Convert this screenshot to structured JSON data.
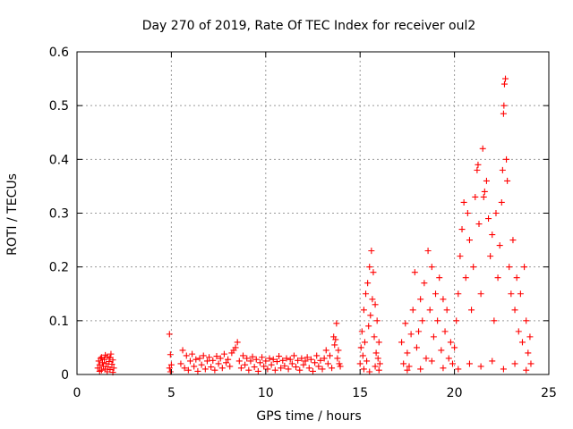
{
  "chart_data": {
    "type": "scatter",
    "title": "Day 270 of 2019, Rate Of TEC Index for receiver oul2",
    "xlabel": "GPS time / hours",
    "ylabel": "ROTI / TECUs",
    "xlim": [
      0,
      25
    ],
    "ylim": [
      0,
      0.6
    ],
    "xticks": [
      0,
      5,
      10,
      15,
      20,
      25
    ],
    "xtick_labels": [
      "0",
      "5",
      "10",
      "15",
      "20",
      "25"
    ],
    "yticks": [
      0,
      0.1,
      0.2,
      0.3,
      0.4,
      0.5,
      0.6
    ],
    "ytick_labels": [
      "0",
      "0.1",
      "0.2",
      "0.3",
      "0.4",
      "0.5",
      "0.6"
    ],
    "grid": true,
    "legend": "none",
    "marker": "plus",
    "color": "#ff0000",
    "series": [
      {
        "values": [
          [
            1.1,
            0.012
          ],
          [
            1.15,
            0.025
          ],
          [
            1.2,
            0.018
          ],
          [
            1.25,
            0.03
          ],
          [
            1.3,
            0.008
          ],
          [
            1.35,
            0.022
          ],
          [
            1.4,
            0.015
          ],
          [
            1.45,
            0.028
          ],
          [
            1.5,
            0.01
          ],
          [
            1.55,
            0.02
          ],
          [
            1.6,
            0.033
          ],
          [
            1.65,
            0.014
          ],
          [
            1.7,
            0.024
          ],
          [
            1.75,
            0.009
          ],
          [
            1.8,
            0.038
          ],
          [
            1.85,
            0.019
          ],
          [
            1.9,
            0.027
          ],
          [
            1.95,
            0.012
          ],
          [
            1.3,
            0.032
          ],
          [
            1.6,
            0.005
          ],
          [
            1.75,
            0.031
          ],
          [
            1.2,
            0.006
          ],
          [
            1.5,
            0.036
          ],
          [
            1.9,
            0.004
          ],
          [
            4.9,
            0.075
          ],
          [
            4.95,
            0.037
          ],
          [
            4.9,
            0.012
          ],
          [
            4.95,
            0.005
          ],
          [
            5.0,
            0.018
          ],
          [
            5.5,
            0.02
          ],
          [
            5.6,
            0.045
          ],
          [
            5.7,
            0.012
          ],
          [
            5.8,
            0.035
          ],
          [
            5.9,
            0.008
          ],
          [
            6.0,
            0.025
          ],
          [
            6.1,
            0.038
          ],
          [
            6.2,
            0.015
          ],
          [
            6.3,
            0.028
          ],
          [
            6.4,
            0.006
          ],
          [
            6.5,
            0.03
          ],
          [
            6.6,
            0.018
          ],
          [
            6.7,
            0.035
          ],
          [
            6.8,
            0.01
          ],
          [
            6.9,
            0.025
          ],
          [
            7.0,
            0.032
          ],
          [
            7.1,
            0.014
          ],
          [
            7.2,
            0.026
          ],
          [
            7.3,
            0.008
          ],
          [
            7.4,
            0.034
          ],
          [
            7.5,
            0.02
          ],
          [
            7.6,
            0.03
          ],
          [
            7.7,
            0.012
          ],
          [
            7.8,
            0.038
          ],
          [
            7.9,
            0.022
          ],
          [
            8.0,
            0.028
          ],
          [
            8.1,
            0.015
          ],
          [
            8.2,
            0.04
          ],
          [
            8.3,
            0.045
          ],
          [
            8.4,
            0.05
          ],
          [
            8.5,
            0.06
          ],
          [
            8.6,
            0.025
          ],
          [
            8.7,
            0.012
          ],
          [
            8.8,
            0.035
          ],
          [
            8.9,
            0.018
          ],
          [
            9.0,
            0.03
          ],
          [
            9.1,
            0.008
          ],
          [
            9.2,
            0.025
          ],
          [
            9.3,
            0.033
          ],
          [
            9.4,
            0.014
          ],
          [
            9.5,
            0.028
          ],
          [
            9.6,
            0.006
          ],
          [
            9.7,
            0.022
          ],
          [
            9.8,
            0.032
          ],
          [
            9.9,
            0.015
          ],
          [
            10.0,
            0.025
          ],
          [
            10.1,
            0.01
          ],
          [
            10.2,
            0.03
          ],
          [
            10.3,
            0.018
          ],
          [
            10.4,
            0.028
          ],
          [
            10.5,
            0.008
          ],
          [
            10.6,
            0.024
          ],
          [
            10.7,
            0.034
          ],
          [
            10.8,
            0.012
          ],
          [
            10.9,
            0.026
          ],
          [
            11.0,
            0.016
          ],
          [
            11.1,
            0.03
          ],
          [
            11.2,
            0.01
          ],
          [
            11.3,
            0.028
          ],
          [
            11.4,
            0.02
          ],
          [
            11.5,
            0.035
          ],
          [
            11.6,
            0.014
          ],
          [
            11.7,
            0.026
          ],
          [
            11.8,
            0.008
          ],
          [
            11.9,
            0.03
          ],
          [
            12.0,
            0.018
          ],
          [
            12.1,
            0.025
          ],
          [
            12.2,
            0.032
          ],
          [
            12.3,
            0.012
          ],
          [
            12.4,
            0.028
          ],
          [
            12.5,
            0.006
          ],
          [
            12.6,
            0.022
          ],
          [
            12.7,
            0.035
          ],
          [
            12.8,
            0.015
          ],
          [
            12.9,
            0.026
          ],
          [
            13.0,
            0.01
          ],
          [
            13.1,
            0.03
          ],
          [
            13.2,
            0.045
          ],
          [
            13.3,
            0.02
          ],
          [
            13.4,
            0.035
          ],
          [
            13.5,
            0.012
          ],
          [
            13.6,
            0.07
          ],
          [
            13.65,
            0.055
          ],
          [
            13.7,
            0.065
          ],
          [
            13.75,
            0.095
          ],
          [
            13.8,
            0.03
          ],
          [
            13.85,
            0.045
          ],
          [
            13.9,
            0.02
          ],
          [
            13.95,
            0.015
          ],
          [
            15.0,
            0.02
          ],
          [
            15.05,
            0.05
          ],
          [
            15.1,
            0.08
          ],
          [
            15.15,
            0.035
          ],
          [
            15.2,
            0.12
          ],
          [
            15.25,
            0.06
          ],
          [
            15.3,
            0.15
          ],
          [
            15.35,
            0.025
          ],
          [
            15.4,
            0.17
          ],
          [
            15.45,
            0.09
          ],
          [
            15.5,
            0.2
          ],
          [
            15.55,
            0.11
          ],
          [
            15.6,
            0.23
          ],
          [
            15.65,
            0.14
          ],
          [
            15.7,
            0.19
          ],
          [
            15.75,
            0.07
          ],
          [
            15.8,
            0.13
          ],
          [
            15.85,
            0.04
          ],
          [
            15.9,
            0.1
          ],
          [
            15.95,
            0.03
          ],
          [
            16.0,
            0.06
          ],
          [
            16.05,
            0.02
          ],
          [
            15.2,
            0.01
          ],
          [
            15.5,
            0.005
          ],
          [
            15.8,
            0.015
          ],
          [
            17.2,
            0.06
          ],
          [
            17.3,
            0.02
          ],
          [
            17.4,
            0.095
          ],
          [
            17.5,
            0.04
          ],
          [
            17.6,
            0.015
          ],
          [
            17.7,
            0.075
          ],
          [
            17.8,
            0.12
          ],
          [
            17.9,
            0.19
          ],
          [
            18.0,
            0.05
          ],
          [
            18.1,
            0.08
          ],
          [
            18.2,
            0.14
          ],
          [
            18.3,
            0.1
          ],
          [
            18.4,
            0.17
          ],
          [
            18.5,
            0.03
          ],
          [
            18.6,
            0.23
          ],
          [
            18.7,
            0.12
          ],
          [
            18.8,
            0.2
          ],
          [
            18.9,
            0.07
          ],
          [
            19.0,
            0.15
          ],
          [
            19.1,
            0.1
          ],
          [
            19.2,
            0.18
          ],
          [
            19.3,
            0.045
          ],
          [
            19.4,
            0.14
          ],
          [
            19.5,
            0.08
          ],
          [
            19.6,
            0.12
          ],
          [
            19.7,
            0.03
          ],
          [
            19.8,
            0.06
          ],
          [
            19.9,
            0.02
          ],
          [
            20.0,
            0.05
          ],
          [
            20.1,
            0.1
          ],
          [
            20.2,
            0.15
          ],
          [
            20.3,
            0.22
          ],
          [
            20.4,
            0.27
          ],
          [
            20.5,
            0.32
          ],
          [
            20.6,
            0.18
          ],
          [
            20.7,
            0.3
          ],
          [
            20.8,
            0.25
          ],
          [
            20.9,
            0.12
          ],
          [
            21.0,
            0.2
          ],
          [
            21.1,
            0.33
          ],
          [
            21.2,
            0.38
          ],
          [
            21.25,
            0.39
          ],
          [
            21.3,
            0.28
          ],
          [
            21.4,
            0.15
          ],
          [
            21.5,
            0.42
          ],
          [
            21.55,
            0.33
          ],
          [
            21.6,
            0.34
          ],
          [
            21.7,
            0.36
          ],
          [
            21.8,
            0.29
          ],
          [
            21.9,
            0.22
          ],
          [
            22.0,
            0.26
          ],
          [
            22.1,
            0.1
          ],
          [
            22.2,
            0.3
          ],
          [
            22.3,
            0.18
          ],
          [
            22.4,
            0.24
          ],
          [
            22.5,
            0.32
          ],
          [
            22.55,
            0.38
          ],
          [
            22.6,
            0.485
          ],
          [
            22.62,
            0.5
          ],
          [
            22.65,
            0.54
          ],
          [
            22.7,
            0.55
          ],
          [
            22.75,
            0.4
          ],
          [
            22.8,
            0.36
          ],
          [
            22.9,
            0.2
          ],
          [
            23.0,
            0.15
          ],
          [
            23.1,
            0.25
          ],
          [
            23.2,
            0.12
          ],
          [
            23.3,
            0.18
          ],
          [
            23.4,
            0.08
          ],
          [
            23.5,
            0.15
          ],
          [
            23.6,
            0.06
          ],
          [
            23.7,
            0.2
          ],
          [
            23.8,
            0.1
          ],
          [
            23.9,
            0.04
          ],
          [
            24.0,
            0.07
          ],
          [
            24.05,
            0.02
          ],
          [
            20.2,
            0.01
          ],
          [
            20.8,
            0.02
          ],
          [
            21.4,
            0.015
          ],
          [
            22.0,
            0.025
          ],
          [
            22.6,
            0.01
          ],
          [
            23.2,
            0.02
          ],
          [
            23.8,
            0.008
          ],
          [
            18.2,
            0.01
          ],
          [
            18.8,
            0.025
          ],
          [
            19.4,
            0.012
          ],
          [
            17.5,
            0.008
          ],
          [
            16.0,
            0.008
          ]
        ]
      }
    ]
  }
}
